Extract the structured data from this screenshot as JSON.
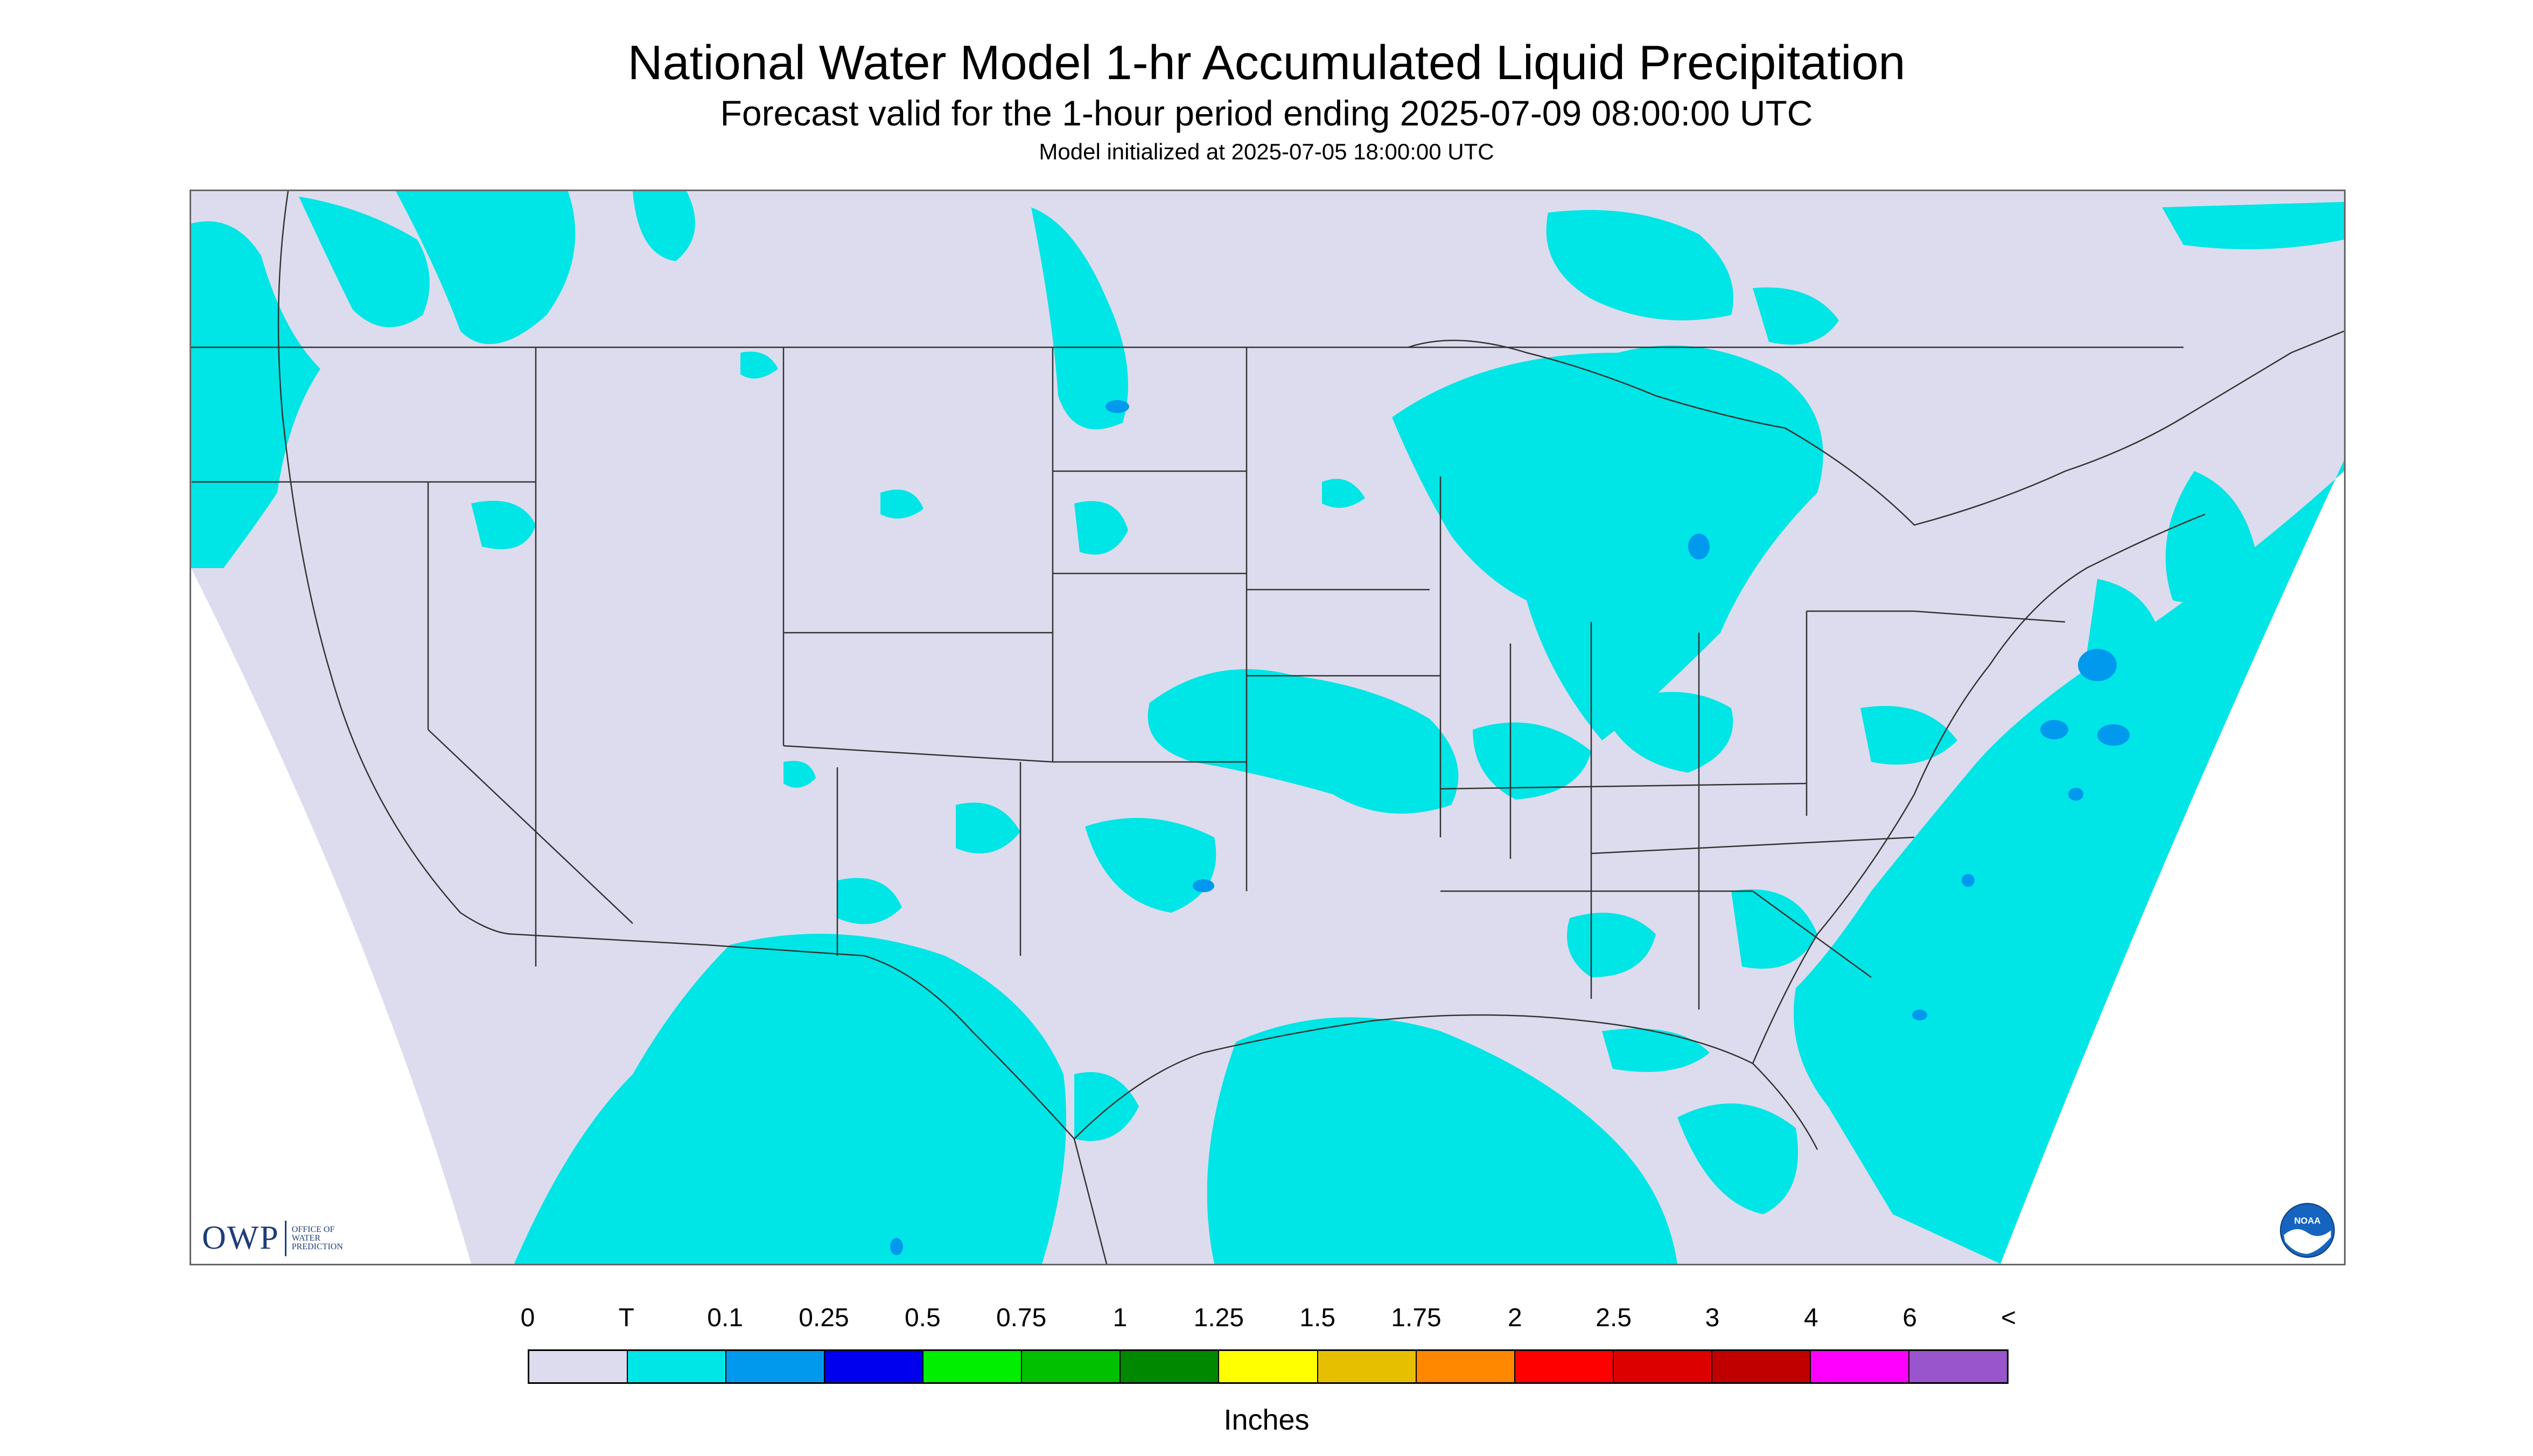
{
  "header": {
    "title": "National Water Model 1-hr Accumulated Liquid Precipitation",
    "subtitle": "Forecast valid for the 1-hour period ending 2025-07-09 08:00:00 UTC",
    "init": "Model initialized at 2025-07-05 18:00:00 UTC"
  },
  "logos": {
    "owp_mark": "OWP",
    "owp_text": "OFFICE OF WATER PREDICTION",
    "noaa_text": "NOAA"
  },
  "colors": {
    "background_no_precip": "#dcdcee",
    "outside_domain": "#ffffff",
    "boundaries": "#333333"
  },
  "legend": {
    "labels": [
      "0",
      "T",
      "0.1",
      "0.25",
      "0.5",
      "0.75",
      "1",
      "1.25",
      "1.5",
      "1.75",
      "2",
      "2.5",
      "3",
      "4",
      "6",
      "<"
    ],
    "swatches": [
      "#dcdcee",
      "#00e5e5",
      "#0099ee",
      "#0000ee",
      "#00ee00",
      "#00c000",
      "#008800",
      "#ffff00",
      "#e6c000",
      "#ff8800",
      "#ff0000",
      "#dd0000",
      "#c00000",
      "#ff00ff",
      "#9955cc"
    ],
    "units": "Inches"
  }
}
